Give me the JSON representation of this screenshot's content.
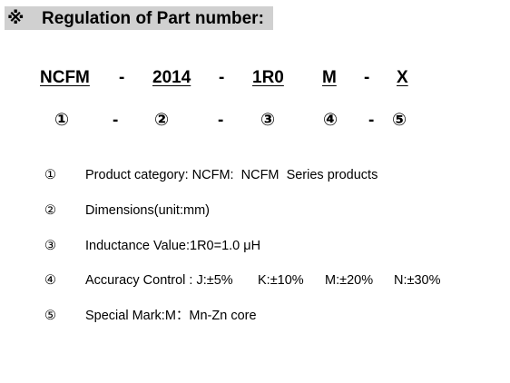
{
  "header": {
    "symbol": "※",
    "title": "Regulation of Part number:"
  },
  "part_number": {
    "segments": [
      "NCFM",
      "-",
      "2014",
      "-",
      "1R0",
      "M",
      "-",
      "X"
    ]
  },
  "index_row": [
    "①",
    "-",
    "②",
    "-",
    "③",
    "④",
    "-",
    "⑤"
  ],
  "items": [
    {
      "marker": "①",
      "text": [
        "Product category: NCFM:  NCFM  Series products"
      ]
    },
    {
      "marker": "②",
      "text": [
        "Dimensions(unit:mm)"
      ]
    },
    {
      "marker": "③",
      "text": [
        "Inductance Value:1R0=1.0 μH"
      ]
    },
    {
      "marker": "④",
      "text": [
        "Accuracy Control : J:±5%",
        "K:±10%",
        "M:±20%",
        "N:±30%"
      ]
    },
    {
      "marker": "⑤",
      "text": [
        "Special Mark:M：Mn-Zn core"
      ]
    }
  ]
}
